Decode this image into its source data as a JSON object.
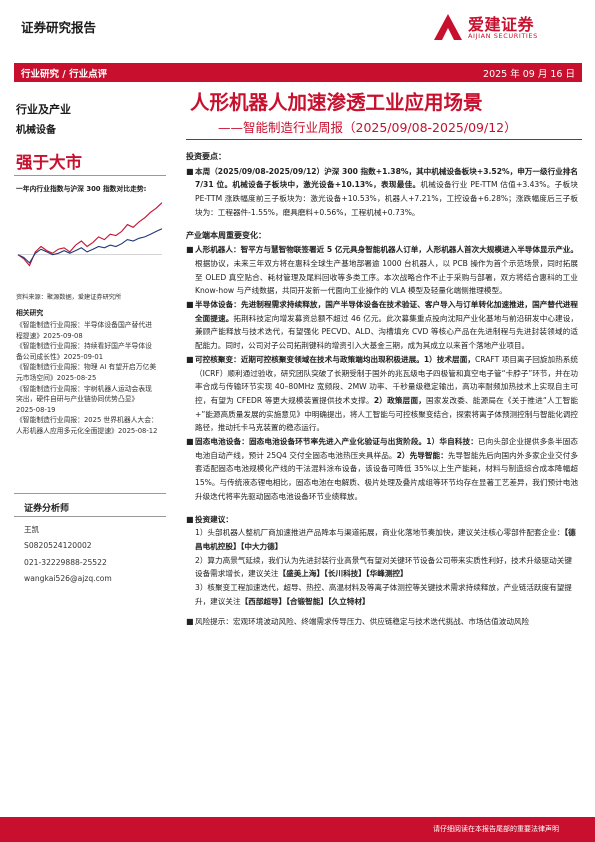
{
  "header": {
    "report_type": "证券研究报告",
    "logo_name": "爱建证券",
    "logo_sub": "AIJIAN SECURITIES"
  },
  "redbar": {
    "left": "行业研究 / 行业点评",
    "date": "2025 年 09 月 16 日"
  },
  "sidebar": {
    "industry_label": "行业及产业",
    "industry_name": "机械设备",
    "rating": "强于大市",
    "chart_title": "一年内行业指数与沪深 300 指数对比走势:",
    "source": "资料来源：聚源数据，爱建证券研究所",
    "related_head": "相关研究",
    "related": [
      "《智能制造行业周报：半导体设备国产替代进",
      "程提速》2025-09-08",
      "《智能制造行业周报：持续看好国产半导体设",
      "备公司成长性》2025-09-01",
      "《智能制造行业周报：物理 AI 有望开启万亿美",
      "元市场空间》2025-08-25",
      "《智能制造行业周报：宇树机器人运动会表现",
      "突出，硬件自研与产业链协同优势凸显》",
      "2025-08-19",
      "《智能制造行业周报：2025 世界机器人大会：",
      "人形机器人应用多元化全面提速》2025-08-12"
    ],
    "analyst_head": "证券分析师",
    "analyst": [
      "王凯",
      "S0820524120002",
      "021-32229888-25522",
      "wangkai526@ajzq.com"
    ]
  },
  "title": {
    "main": "人形机器人加速渗透工业应用场景",
    "sub": "——智能制造行业周报（2025/09/08-2025/09/12）"
  },
  "sections": {
    "points_head": "投资要点：",
    "p1_bold": "本周（2025/09/08-2025/09/12）沪深 300 指数+1.38%，其中机械设备板块+3.52%，申万一级行业排名 7/31 位。机械设备子板块中，激光设备+10.13%，表现最佳。",
    "p1_rest": "机械设备行业 PE-TTM 估值+3.43%。子板块 PE-TTM 涨跌幅度前三子板块为：激光设备+10.53%，机器人+7.21%，工控设备+6.28%；涨跌幅度后三子板块为：工程器件-1.55%，磨具磨料+0.56%，工程机械+0.73%。",
    "news_head": "产业端本周重要变化：",
    "n1_bold": "人形机器人：智平方与慧智物联签署近 5 亿元具身智能机器人订单，人形机器人首次大规模进入半导体显示产业。",
    "n1_rest": "根据协议，未来三年双方将在惠科全球生产基地部署逾 1000 台机器人，以 PCB 操作为首个示范场景，同时拓展至 OLED 真空贴合、耗材管理及尾料回收等多类工序。本次战略合作不止于采购与部署，双方将结合惠科的工业 Know-how 与产线数据，共同开发新一代面向工业操作的 VLA 模型及轻量化端侧推理模型。",
    "n2_bold": "半导体设备：先进制程需求持续释放，国产半导体设备在技术验证、客户导入与订单转化加速推进，国产替代进程全面提速。",
    "n2_rest": "拓荆科技定向增发募资总额不超过 46 亿元。此次募集重点投向沈阳产业化基地与前沿研发中心建设，兼顾产能释放与技术迭代，有望强化 PECVD、ALD、沟槽填充 CVD 等核心产品在先进制程与先进封装领域的适配能力。同时，公司对子公司拓荆键科的增资引入大基金三期，成为其成立以来首个落地产业项目。",
    "n3_bold": "可控核聚变：近期可控核聚变领域在技术与政策端均出现积极进展。1）技术层面，",
    "n3_rest": "CRAFT 项目离子回旋加热系统（ICRF）顺利通过验收，研究团队突破了长期受制于国外的兆瓦级电子四极管和真空电子管“卡脖子”环节，并在功率合成与传输环节实现 40–80MHz 宽频段、2MW 功率、千秒量级稳定输出，高功率耐频加热技术上实现自主可控，有望为 CFEDR 等更大规模装置提供技术支撑。",
    "n3_bold2": "2）政策层面，",
    "n3_rest2": "国家发改委、能源局在《关于推进“人工智能+”能源高质量发展的实施意见》中明确提出，将人工智能与可控核聚变结合，探索将离子体预测控制与智能化调控路径，推动托卡马克装置的稳态运行。",
    "n4_bold": "固态电池设备：固态电池设备环节率先进入产业化验证与出货阶段。1）华自科技：",
    "n4_rest": "已向头部企业提供多条半固态电池自动产线，预计 25Q4 交付全固态电池热压夹具样品。",
    "n4_bold2": "2）先导智能：",
    "n4_rest2": "先导智能先后向国内外多家企业交付多套适配固态电池规模化产线的干法混料涂布设备，该设备可降低 35%以上生产能耗，材料与制造综合成本降幅超 15%。与传统液态锂电相比，固态电池在电解质、极片处理及叠片成组等环节均存在显著工艺差异，我们预计电池升级迭代将率先驱动固态电池设备环节业绩释放。",
    "advice_head": "投资建议：",
    "a1": "1）头部机器人整机厂商加速推进产品降本与渠道拓展，商业化落地节奏加快，建议关注核心零部件配套企业：",
    "a1_bold": "【德昌电机控股】【中大力德】",
    "a2": "2）算力高景气延续，我们认为先进封装行业高景气有望对关键环节设备公司带来实质性利好，技术升级驱动关键设备需求增长，建议关注",
    "a2_bold": "【盛美上海】【长川科技】【华峰测控】",
    "a3": "3）核聚变工程加速迭代，超导、热控、高温材料及等离子体测控等关键技术需求持续释放，产业链活跃度有望提升，建议关注",
    "a3_bold": "【西部超导】【合锻智能】【久立特材】",
    "risk": "风险提示：宏观环境波动风险、终端需求传导压力、供应链稳定与技术迭代挑战、市场估值波动风险"
  },
  "footer": {
    "disclaimer": "请仔细阅读在本报告尾部的重要法律声明"
  },
  "chart_data": {
    "type": "line",
    "title": "一年内行业指数与沪深 300 指数对比走势:",
    "series": [
      {
        "name": "",
        "color": "#c8102e",
        "values": [
          0,
          -3,
          -8,
          2,
          6,
          3,
          1,
          4,
          5,
          2,
          7,
          10,
          6,
          9,
          13,
          11,
          15,
          14,
          17,
          22,
          20,
          24,
          27,
          31,
          34,
          38
        ]
      },
      {
        "name": "",
        "color": "#1e3a78",
        "values": [
          0,
          -2,
          -6,
          1,
          4,
          2,
          0,
          1,
          3,
          1,
          3,
          5,
          2,
          4,
          6,
          5,
          7,
          6,
          8,
          11,
          10,
          12,
          13,
          15,
          17,
          19
        ]
      }
    ],
    "ylim": [
      -20,
      40
    ],
    "grid": false,
    "legend": "top-left"
  }
}
